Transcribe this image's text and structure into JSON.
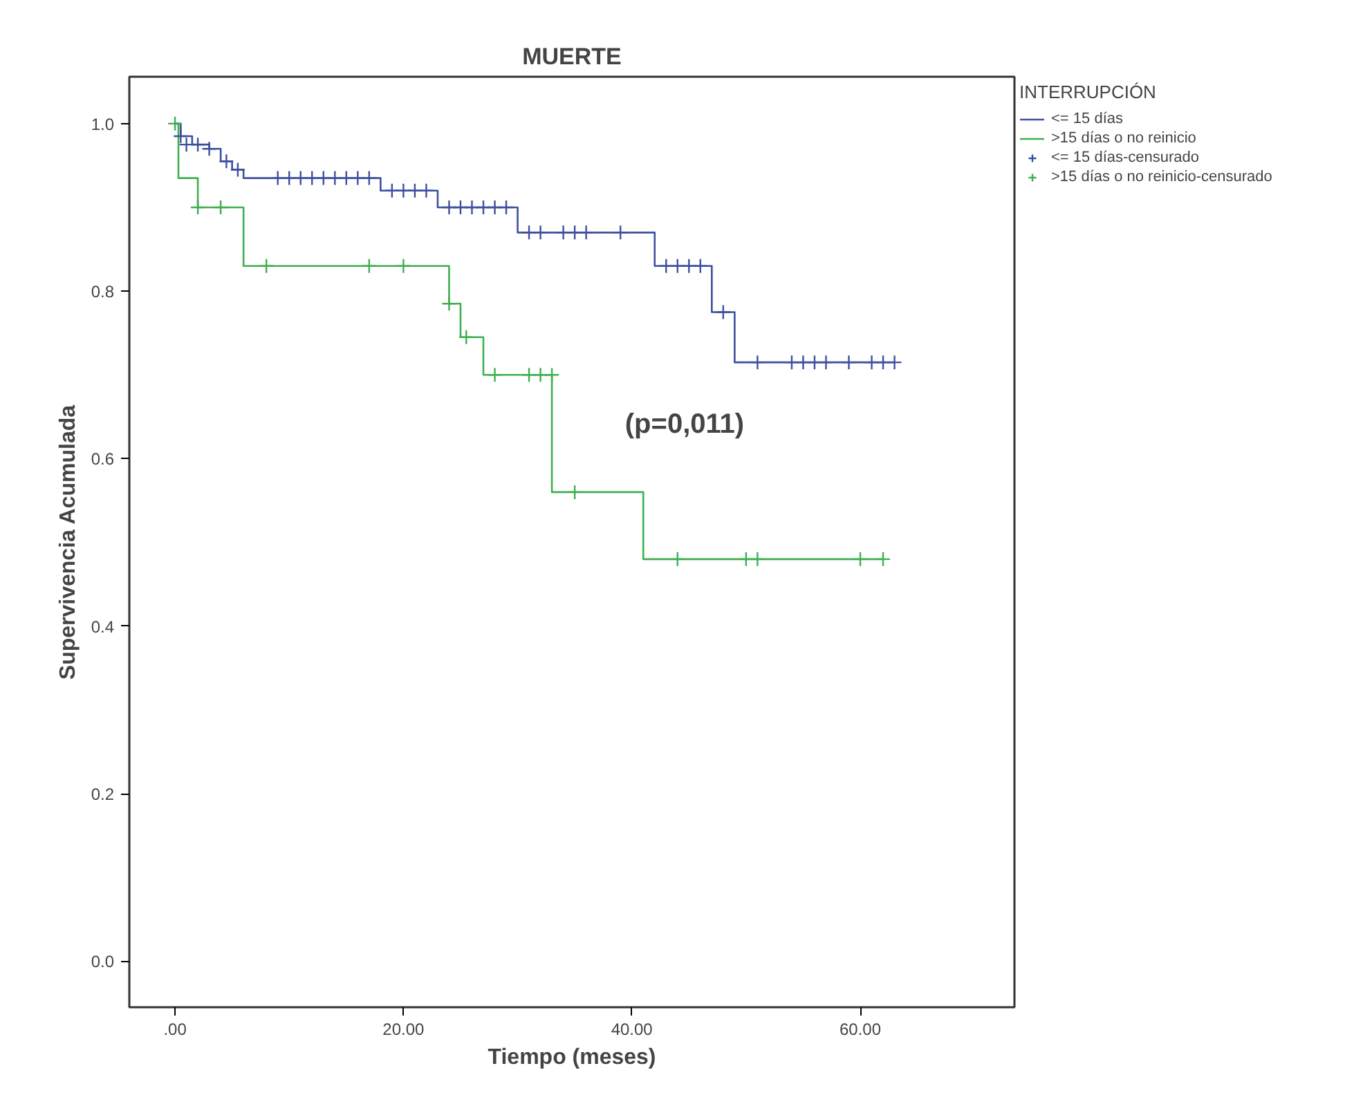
{
  "chart_data": {
    "type": "step",
    "title": "MUERTE",
    "xlabel": "Tiempo (meses)",
    "ylabel": "Supervivencia Acumulada",
    "legend_title": "INTERRUPCIÓN",
    "legend": "top right",
    "grid": false,
    "xlim": [
      -4,
      73.5
    ],
    "ylim": [
      -0.055,
      1.056
    ],
    "xticks": [
      {
        "value": 0,
        "label": ".00"
      },
      {
        "value": 20,
        "label": "20.00"
      },
      {
        "value": 40,
        "label": "40.00"
      },
      {
        "value": 60,
        "label": "60.00"
      }
    ],
    "yticks": [
      {
        "value": 0,
        "label": "0.0"
      },
      {
        "value": 0.2,
        "label": "0.2"
      },
      {
        "value": 0.4,
        "label": "0.4"
      },
      {
        "value": 0.6,
        "label": "0.6"
      },
      {
        "value": 0.8,
        "label": "0.8"
      },
      {
        "value": 1,
        "label": "1.0"
      }
    ],
    "annotations": [
      "(p=0,011)"
    ],
    "series": [
      {
        "name": "<= 15 días",
        "color": "#3d4fa0",
        "x": [
          0,
          0.5,
          1.5,
          3,
          4,
          5,
          6,
          18,
          23,
          30,
          42,
          47,
          49,
          63
        ],
        "values": [
          1,
          0.985,
          0.975,
          0.97,
          0.955,
          0.945,
          0.935,
          0.92,
          0.9,
          0.87,
          0.83,
          0.775,
          0.715,
          0.715
        ]
      },
      {
        "name": ">15 días o no reinicio",
        "color": "#3fae4f",
        "x": [
          0,
          0.3,
          2,
          6,
          24,
          25,
          27,
          33,
          41,
          62
        ],
        "values": [
          1,
          0.935,
          0.9,
          0.83,
          0.785,
          0.745,
          0.7,
          0.56,
          0.48,
          0.48
        ]
      },
      {
        "name": "<= 15 días-censurado",
        "type": "scatter",
        "color": "#3d4fa0",
        "marker": "cross",
        "x": [
          0.5,
          1,
          2,
          3,
          4.5,
          5.5,
          9,
          10,
          11,
          12,
          13,
          14,
          15,
          16,
          17,
          19,
          20,
          21,
          22,
          24,
          25,
          26,
          27,
          28,
          29,
          31,
          32,
          34,
          35,
          36,
          39,
          43,
          44,
          45,
          46,
          48,
          51,
          54,
          55,
          56,
          57,
          59,
          61,
          62,
          63
        ],
        "values": [
          0.985,
          0.975,
          0.975,
          0.97,
          0.955,
          0.945,
          0.935,
          0.935,
          0.935,
          0.935,
          0.935,
          0.935,
          0.935,
          0.935,
          0.935,
          0.92,
          0.92,
          0.92,
          0.92,
          0.9,
          0.9,
          0.9,
          0.9,
          0.9,
          0.9,
          0.87,
          0.87,
          0.87,
          0.87,
          0.87,
          0.87,
          0.83,
          0.83,
          0.83,
          0.83,
          0.775,
          0.715,
          0.715,
          0.715,
          0.715,
          0.715,
          0.715,
          0.715,
          0.715,
          0.715
        ]
      },
      {
        "name": ">15 días o no reinicio-censurado",
        "type": "scatter",
        "color": "#3fae4f",
        "marker": "cross",
        "x": [
          0,
          2,
          4,
          8,
          17,
          20,
          24,
          25.5,
          28,
          31,
          32,
          33,
          35,
          44,
          50,
          51,
          60,
          62
        ],
        "values": [
          1,
          0.9,
          0.9,
          0.83,
          0.83,
          0.83,
          0.785,
          0.745,
          0.7,
          0.7,
          0.7,
          0.7,
          0.56,
          0.48,
          0.48,
          0.48,
          0.48,
          0.48
        ]
      }
    ]
  }
}
